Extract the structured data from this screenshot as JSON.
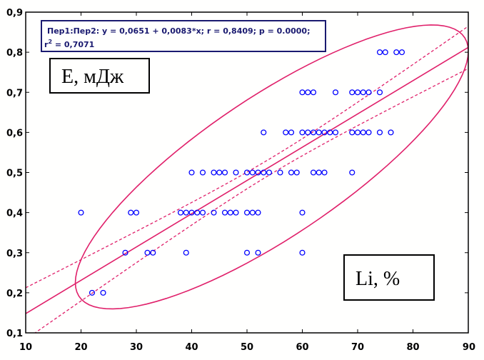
{
  "chart_data": {
    "type": "scatter",
    "xlim": [
      10,
      90
    ],
    "ylim": [
      0.1,
      0.9
    ],
    "x_ticks": [
      10,
      20,
      30,
      40,
      50,
      60,
      70,
      80,
      90
    ],
    "y_ticks": [
      0.1,
      0.2,
      0.3,
      0.4,
      0.5,
      0.6,
      0.7,
      0.8,
      0.9
    ],
    "x_tick_labels": [
      "10",
      "20",
      "30",
      "40",
      "50",
      "60",
      "70",
      "80",
      "90"
    ],
    "y_tick_labels": [
      "0,1",
      "0,2",
      "0,3",
      "0,4",
      "0,5",
      "0,6",
      "0,7",
      "0,8",
      "0,9"
    ],
    "grid": false,
    "point_color": "#0000ff",
    "line_color": "#e0206a",
    "regression": {
      "intercept": 0.0651,
      "slope": 0.0083,
      "line1": "Пер1:Пер2:   y = 0,0651 + 0,0083*x;  r = 0,8409; p = 0.0000;",
      "line2_prefix": "r",
      "line2_sup": "2",
      "line2_suffix": " = 0,7071"
    },
    "ylabel": "Е, мДж",
    "xlabel": "Li, %",
    "points": [
      [
        20,
        0.4
      ],
      [
        22,
        0.2
      ],
      [
        24,
        0.2
      ],
      [
        28,
        0.3
      ],
      [
        29,
        0.4
      ],
      [
        30,
        0.4
      ],
      [
        32,
        0.3
      ],
      [
        33,
        0.3
      ],
      [
        38,
        0.4
      ],
      [
        39,
        0.4
      ],
      [
        39,
        0.3
      ],
      [
        40,
        0.4
      ],
      [
        40,
        0.5
      ],
      [
        41,
        0.4
      ],
      [
        42,
        0.4
      ],
      [
        42,
        0.5
      ],
      [
        44,
        0.4
      ],
      [
        44,
        0.5
      ],
      [
        45,
        0.5
      ],
      [
        46,
        0.4
      ],
      [
        46,
        0.5
      ],
      [
        47,
        0.4
      ],
      [
        48,
        0.4
      ],
      [
        48,
        0.5
      ],
      [
        50,
        0.3
      ],
      [
        50,
        0.4
      ],
      [
        50,
        0.5
      ],
      [
        51,
        0.4
      ],
      [
        51,
        0.5
      ],
      [
        52,
        0.3
      ],
      [
        52,
        0.4
      ],
      [
        52,
        0.5
      ],
      [
        53,
        0.5
      ],
      [
        53,
        0.6
      ],
      [
        54,
        0.5
      ],
      [
        56,
        0.5
      ],
      [
        57,
        0.6
      ],
      [
        58,
        0.5
      ],
      [
        58,
        0.6
      ],
      [
        59,
        0.5
      ],
      [
        60,
        0.3
      ],
      [
        60,
        0.4
      ],
      [
        60,
        0.6
      ],
      [
        60,
        0.7
      ],
      [
        61,
        0.6
      ],
      [
        61,
        0.7
      ],
      [
        62,
        0.5
      ],
      [
        62,
        0.6
      ],
      [
        62,
        0.7
      ],
      [
        63,
        0.5
      ],
      [
        63,
        0.6
      ],
      [
        64,
        0.5
      ],
      [
        64,
        0.6
      ],
      [
        65,
        0.6
      ],
      [
        66,
        0.6
      ],
      [
        66,
        0.7
      ],
      [
        69,
        0.5
      ],
      [
        69,
        0.6
      ],
      [
        69,
        0.7
      ],
      [
        70,
        0.6
      ],
      [
        70,
        0.7
      ],
      [
        71,
        0.6
      ],
      [
        71,
        0.7
      ],
      [
        72,
        0.6
      ],
      [
        72,
        0.7
      ],
      [
        74,
        0.6
      ],
      [
        74,
        0.7
      ],
      [
        74,
        0.8
      ],
      [
        75,
        0.8
      ],
      [
        76,
        0.6
      ],
      [
        77,
        0.8
      ],
      [
        78,
        0.8
      ]
    ]
  }
}
